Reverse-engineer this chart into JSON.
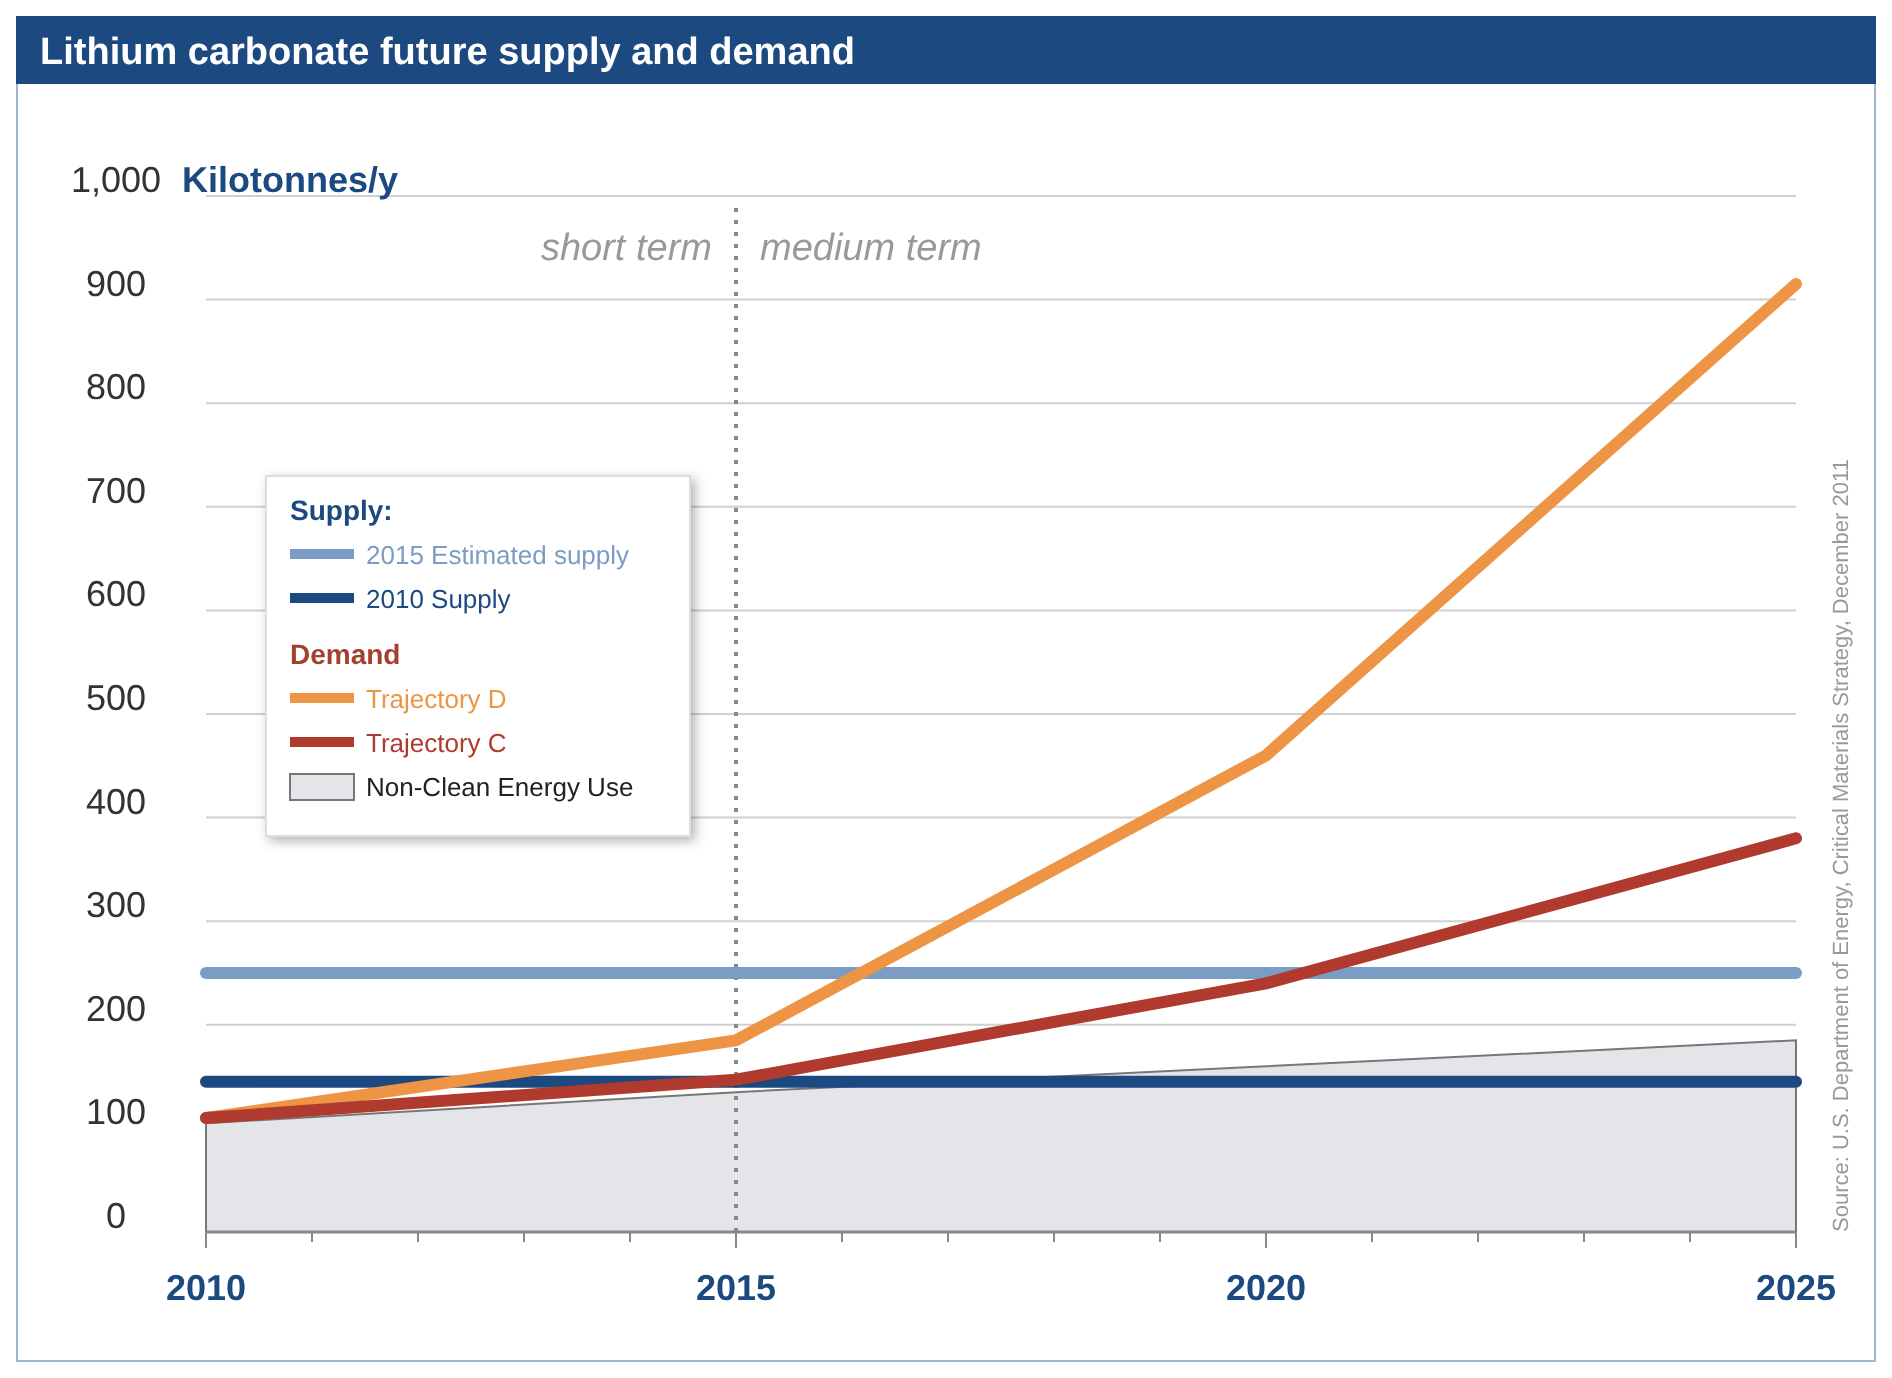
{
  "chart_data": {
    "type": "line",
    "title": "Lithium carbonate future supply and demand",
    "ylabel": "Kilotonnes/y",
    "x": [
      2010,
      2015,
      2020,
      2025
    ],
    "xlim": [
      2010,
      2025
    ],
    "xticks": [
      2010,
      {
        "value": 2011,
        "label": null
      },
      {
        "value": 2012,
        "label": null
      },
      {
        "value": 2013,
        "label": null
      },
      {
        "value": 2014,
        "label": null
      },
      2015,
      {
        "value": 2016,
        "label": null
      },
      {
        "value": 2017,
        "label": null
      },
      {
        "value": 2018,
        "label": null
      },
      {
        "value": 2019,
        "label": null
      },
      2020,
      {
        "value": 2021,
        "label": null
      },
      {
        "value": 2022,
        "label": null
      },
      {
        "value": 2023,
        "label": null
      },
      {
        "value": 2024,
        "label": null
      },
      2025
    ],
    "ylim": [
      0,
      1000
    ],
    "yticks": [
      0,
      100,
      200,
      300,
      400,
      500,
      600,
      700,
      800,
      900,
      {
        "value": 1000,
        "label": "1,000"
      }
    ],
    "grid": "y",
    "legend": "left",
    "marker": "none",
    "line_style": "solid",
    "series": [
      {
        "name": "2015 Estimated supply",
        "color": "#7b9cc4",
        "values": [
          250,
          250,
          250,
          250
        ]
      },
      {
        "name": "2010 Supply",
        "color": "#1c4a80",
        "values": [
          145,
          145,
          145,
          145
        ]
      },
      {
        "name": "Trajectory D",
        "color": "#ee9445",
        "values": [
          110,
          185,
          460,
          915
        ]
      },
      {
        "name": "Trajectory C",
        "color": "#b03a2e",
        "values": [
          110,
          147,
          240,
          380
        ]
      },
      {
        "name": "Non-Clean Energy Use",
        "type": "area",
        "color": "#e4e5e8",
        "values": [
          105,
          135,
          160,
          185
        ]
      }
    ],
    "ref_lines": [
      {
        "axis": "x",
        "value": 2015,
        "line_style": "dotted",
        "color": "#888888"
      }
    ],
    "annotations": [
      "short term",
      "medium term",
      "Supply:",
      "Demand",
      "Source: U.S. Department of Energy, Critical Materials Strategy, December 2011"
    ]
  }
}
